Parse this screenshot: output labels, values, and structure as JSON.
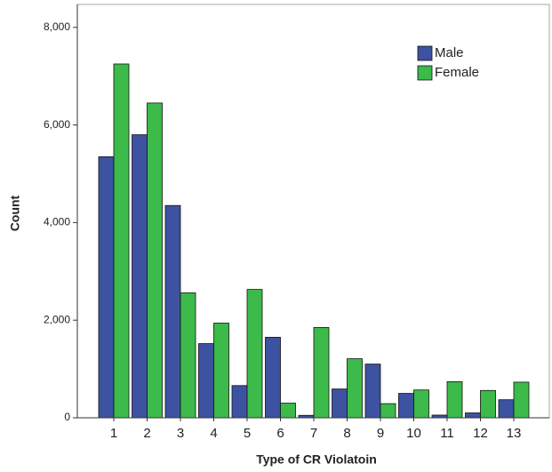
{
  "chart_data": {
    "type": "bar",
    "x_label": "Type of CR Violatoin",
    "y_label": "Count",
    "categories": [
      "1",
      "2",
      "3",
      "4",
      "5",
      "6",
      "7",
      "8",
      "9",
      "10",
      "11",
      "12",
      "13"
    ],
    "series": [
      {
        "name": "Male",
        "color": "#3d52a1",
        "values": [
          5350,
          5800,
          4350,
          1520,
          660,
          1650,
          50,
          590,
          1100,
          500,
          55,
          100,
          370
        ]
      },
      {
        "name": "Female",
        "color": "#3cba4a",
        "values": [
          7250,
          6450,
          2560,
          1940,
          2630,
          300,
          1850,
          1210,
          290,
          570,
          740,
          560,
          730
        ]
      }
    ],
    "ylim": [
      0,
      8470
    ],
    "yticks": [
      0,
      {
        "value": 2000,
        "label": "2,000"
      },
      {
        "value": 4000,
        "label": "4,000"
      },
      {
        "value": 6000,
        "label": "6,000"
      },
      {
        "value": 8000,
        "label": "8,000"
      }
    ],
    "legend": "top-right"
  }
}
